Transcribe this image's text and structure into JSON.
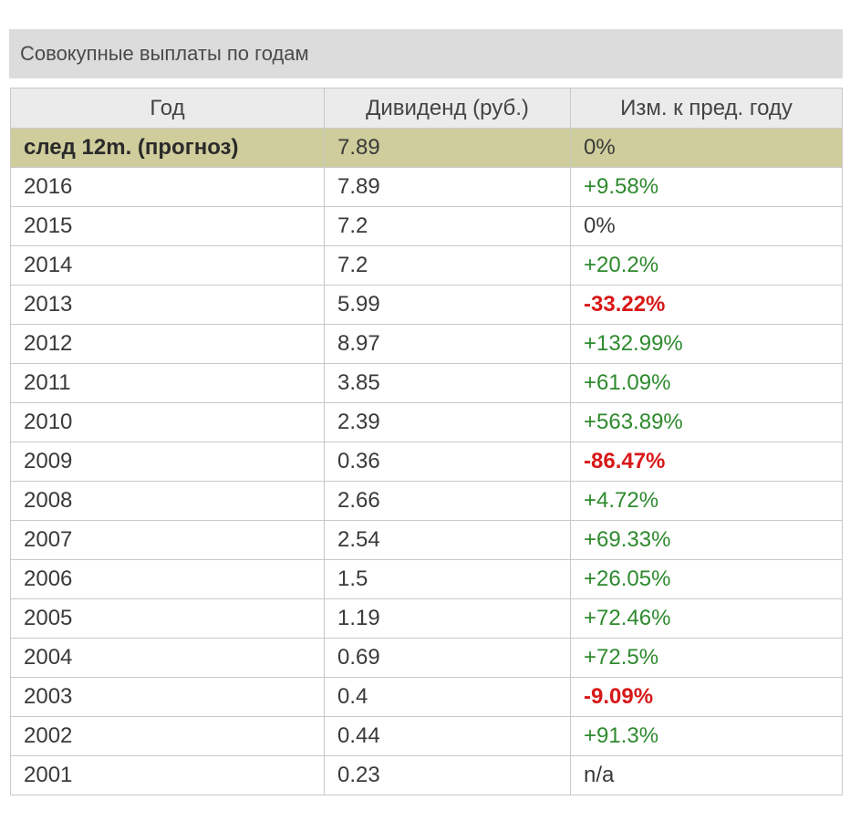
{
  "title": "Совокупные выплаты по годам",
  "columns": [
    "Год",
    "Дивиденд (руб.)",
    "Изм. к пред. году"
  ],
  "colors": {
    "positive": "#2e8a2e",
    "negative": "#d81818",
    "forecast_bg": "#cfcd9c",
    "header_bg": "#ebebeb",
    "title_bg": "#dcdcdc"
  },
  "rows": [
    {
      "year": "след 12m. (прогноз)",
      "dividend": "7.89",
      "change": "0%",
      "trend": "neutral",
      "forecast": true
    },
    {
      "year": "2016",
      "dividend": "7.89",
      "change": "+9.58%",
      "trend": "pos"
    },
    {
      "year": "2015",
      "dividend": "7.2",
      "change": "0%",
      "trend": "neutral"
    },
    {
      "year": "2014",
      "dividend": "7.2",
      "change": "+20.2%",
      "trend": "pos"
    },
    {
      "year": "2013",
      "dividend": "5.99",
      "change": "-33.22%",
      "trend": "neg"
    },
    {
      "year": "2012",
      "dividend": "8.97",
      "change": "+132.99%",
      "trend": "pos"
    },
    {
      "year": "2011",
      "dividend": "3.85",
      "change": "+61.09%",
      "trend": "pos"
    },
    {
      "year": "2010",
      "dividend": "2.39",
      "change": "+563.89%",
      "trend": "pos"
    },
    {
      "year": "2009",
      "dividend": "0.36",
      "change": "-86.47%",
      "trend": "neg"
    },
    {
      "year": "2008",
      "dividend": "2.66",
      "change": "+4.72%",
      "trend": "pos"
    },
    {
      "year": "2007",
      "dividend": "2.54",
      "change": "+69.33%",
      "trend": "pos"
    },
    {
      "year": "2006",
      "dividend": "1.5",
      "change": "+26.05%",
      "trend": "pos"
    },
    {
      "year": "2005",
      "dividend": "1.19",
      "change": "+72.46%",
      "trend": "pos"
    },
    {
      "year": "2004",
      "dividend": "0.69",
      "change": "+72.5%",
      "trend": "pos"
    },
    {
      "year": "2003",
      "dividend": "0.4",
      "change": "-9.09%",
      "trend": "neg"
    },
    {
      "year": "2002",
      "dividend": "0.44",
      "change": "+91.3%",
      "trend": "pos"
    },
    {
      "year": "2001",
      "dividend": "0.23",
      "change": "n/a",
      "trend": "neutral"
    }
  ]
}
